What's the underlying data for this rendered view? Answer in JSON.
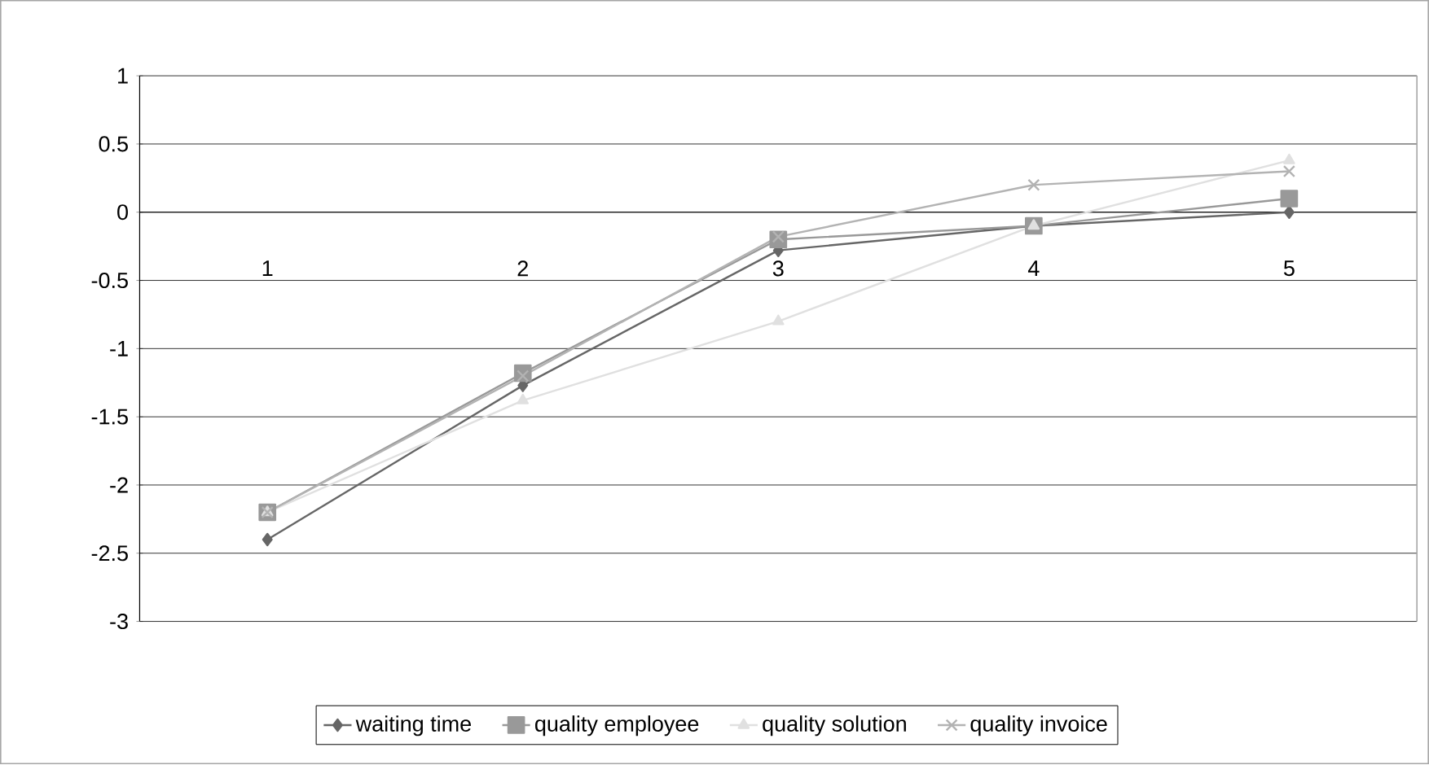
{
  "chart_data": {
    "type": "line",
    "categories": [
      "1",
      "2",
      "3",
      "4",
      "5"
    ],
    "ylim": [
      -3,
      1
    ],
    "yticks": [
      -3,
      -2.5,
      -2,
      -1.5,
      -1,
      -0.5,
      0,
      0.5,
      1
    ],
    "grid": "y",
    "legend": "bottom",
    "series": [
      {
        "name": "waiting time",
        "color": "#666666",
        "marker": "diamond",
        "values": [
          -2.4,
          -1.27,
          -0.28,
          -0.1,
          0
        ]
      },
      {
        "name": "quality employee",
        "color": "#999999",
        "marker": "square",
        "values": [
          -2.2,
          -1.18,
          -0.2,
          -0.1,
          0.1
        ]
      },
      {
        "name": "quality solution",
        "color": "#e0e0e0",
        "marker": "triangle",
        "values": [
          -2.2,
          -1.38,
          -0.8,
          -0.1,
          0.38
        ]
      },
      {
        "name": "quality invoice",
        "color": "#b3b3b3",
        "marker": "cross",
        "values": [
          -2.2,
          -1.2,
          -0.18,
          0.2,
          0.3
        ]
      }
    ]
  }
}
